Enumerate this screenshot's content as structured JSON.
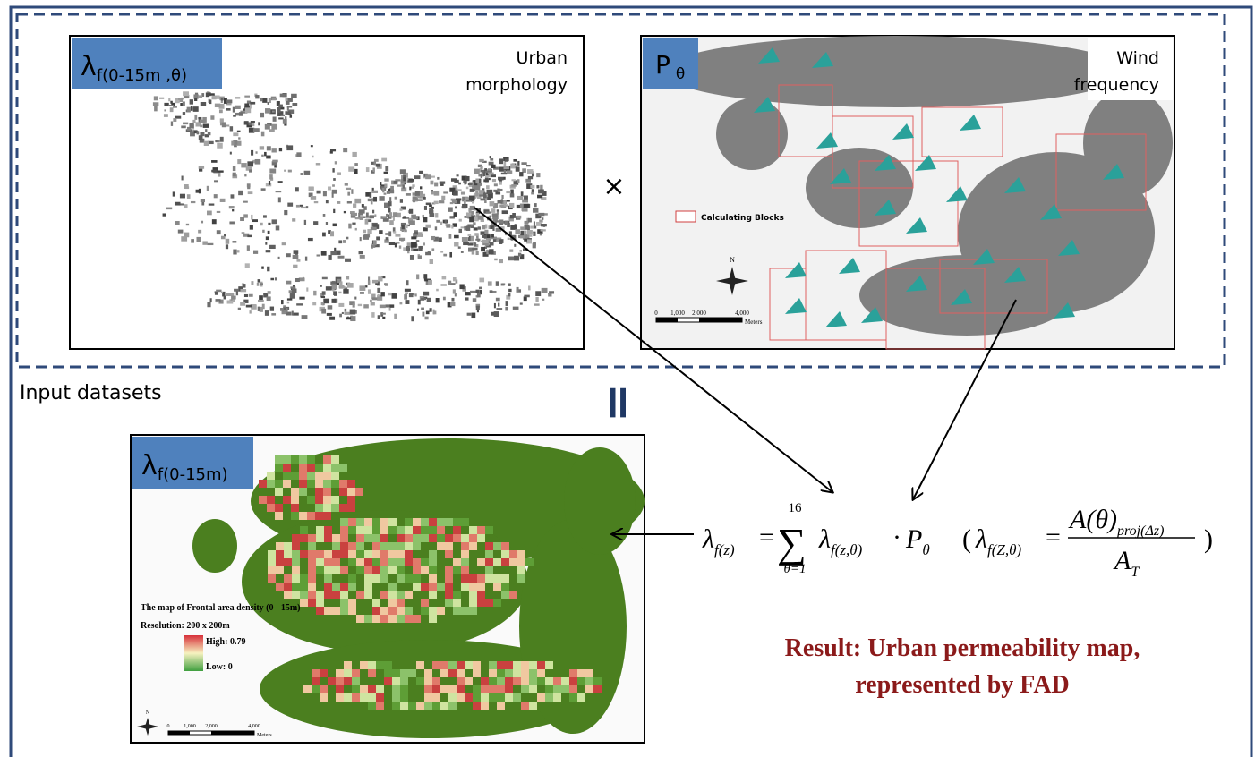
{
  "panels": [
    {
      "label_main": "λ",
      "label_sub": "f(0-15m ,θ)",
      "caption": [
        "Urban",
        "morphology"
      ]
    },
    {
      "label_main": "P",
      "label_sub": "θ",
      "caption": [
        "Wind",
        "frequency"
      ],
      "legend": "Calculating Blocks",
      "north": "N",
      "scale": [
        "0",
        "1,000",
        "2,000",
        "4,000"
      ],
      "scale_unit": "Meters"
    }
  ],
  "operator": "×",
  "section_label": "Input datasets",
  "equals": "=",
  "result_map": {
    "label_main": "λ",
    "label_sub": "f(0-15m)",
    "legend_title": "The map of Frontal area density (0 - 15m)",
    "resolution": "Resolution: 200 x 200m",
    "high": "High: 0.79",
    "low": "Low: 0",
    "north": "N",
    "scale": [
      "0",
      "1,000",
      "2,000",
      "4,000"
    ],
    "scale_unit": "Meters"
  },
  "formula": {
    "lhs": "λ",
    "lhs_sub": "f(z)",
    "eq": "=",
    "sum": "∑",
    "sup": "16",
    "sub": "θ=1",
    "term": "λ",
    "term_sub": "f(z,θ)",
    "dot": "·",
    "p": "P",
    "p_sub": "θ",
    "paren_open": "(",
    "d_lambda": "λ",
    "d_sub": "f(Z,θ)",
    "d_eq": "=",
    "num": "A(θ)",
    "num_sub": "proj(Δz)",
    "den": "A",
    "den_sub": "T",
    "paren_close": ")"
  },
  "result": [
    "Result: Urban permeability map,",
    "represented by FAD"
  ]
}
